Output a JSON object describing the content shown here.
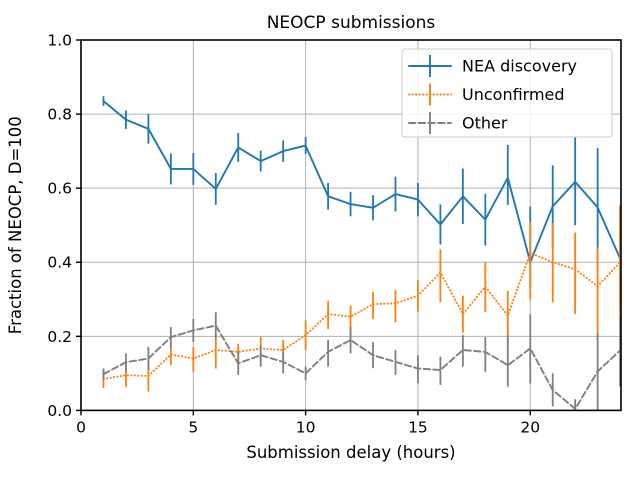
{
  "figure": {
    "title": "NEOCP submissions",
    "xlabel": "Submission delay (hours)",
    "ylabel": "Fraction of NEOCP, D=100"
  },
  "chart_data": {
    "type": "line",
    "title": "NEOCP submissions",
    "xlabel": "Submission delay (hours)",
    "ylabel": "Fraction of NEOCP, D=100",
    "xlim": [
      0,
      24.04
    ],
    "ylim": [
      0.0,
      1.0
    ],
    "xticks": [
      0,
      5,
      10,
      15,
      20
    ],
    "xtick_labels": [
      "0",
      "5",
      "10",
      "15",
      "20"
    ],
    "yticks": [
      0.0,
      0.2,
      0.4,
      0.6,
      0.8,
      1.0
    ],
    "ytick_labels": [
      "0.0",
      "0.2",
      "0.4",
      "0.6",
      "0.8",
      "1.0"
    ],
    "grid": true,
    "legend_position": "upper right",
    "x": [
      1,
      2,
      3,
      4,
      5,
      6,
      7,
      8,
      9,
      10,
      11,
      12,
      13,
      14,
      15,
      16,
      17,
      18,
      19,
      20,
      21,
      22,
      23,
      24
    ],
    "series": [
      {
        "name": "NEA discovery",
        "color": "#1f77b4",
        "linestyle": "solid",
        "values": [
          0.835,
          0.785,
          0.76,
          0.652,
          0.652,
          0.598,
          0.71,
          0.673,
          0.7,
          0.715,
          0.578,
          0.557,
          0.547,
          0.584,
          0.569,
          0.502,
          0.578,
          0.515,
          0.628,
          0.4,
          0.551,
          0.617,
          0.548,
          0.41
        ],
        "err_low": [
          0.822,
          0.76,
          0.72,
          0.61,
          0.609,
          0.555,
          0.671,
          0.645,
          0.671,
          0.692,
          0.542,
          0.524,
          0.513,
          0.537,
          0.524,
          0.448,
          0.503,
          0.445,
          0.555,
          0.328,
          0.44,
          0.5,
          0.38,
          0.27
        ],
        "err_high": [
          0.848,
          0.81,
          0.8,
          0.694,
          0.695,
          0.641,
          0.749,
          0.701,
          0.729,
          0.738,
          0.614,
          0.59,
          0.581,
          0.631,
          0.614,
          0.556,
          0.653,
          0.585,
          0.717,
          0.55,
          0.662,
          0.738,
          0.708,
          0.55
        ]
      },
      {
        "name": "Unconfirmed",
        "color": "#ff7f0e",
        "linestyle": "dotted",
        "values": [
          0.085,
          0.095,
          0.093,
          0.151,
          0.14,
          0.163,
          0.158,
          0.167,
          0.163,
          0.203,
          0.26,
          0.253,
          0.287,
          0.289,
          0.31,
          0.372,
          0.26,
          0.334,
          0.256,
          0.425,
          0.4,
          0.381,
          0.335,
          0.4
        ],
        "err_low": [
          0.06,
          0.064,
          0.051,
          0.122,
          0.104,
          0.113,
          0.127,
          0.136,
          0.131,
          0.163,
          0.22,
          0.185,
          0.247,
          0.238,
          0.265,
          0.292,
          0.21,
          0.265,
          0.18,
          0.3,
          0.292,
          0.26,
          0.19,
          0.25
        ],
        "err_high": [
          0.109,
          0.122,
          0.136,
          0.176,
          0.171,
          0.207,
          0.18,
          0.198,
          0.19,
          0.243,
          0.296,
          0.283,
          0.32,
          0.325,
          0.352,
          0.435,
          0.31,
          0.4,
          0.323,
          0.51,
          0.506,
          0.48,
          0.44,
          0.555
        ]
      },
      {
        "name": "Other",
        "color": "#7f7f7f",
        "linestyle": "dashed",
        "values": [
          0.098,
          0.13,
          0.14,
          0.198,
          0.216,
          0.229,
          0.127,
          0.149,
          0.131,
          0.1,
          0.158,
          0.19,
          0.149,
          0.131,
          0.113,
          0.109,
          0.163,
          0.158,
          0.122,
          0.167,
          0.055,
          0.004,
          0.105,
          0.162
        ],
        "err_low": [
          0.082,
          0.104,
          0.109,
          0.167,
          0.185,
          0.194,
          0.096,
          0.118,
          0.1,
          0.082,
          0.118,
          0.154,
          0.114,
          0.096,
          0.073,
          0.069,
          0.118,
          0.104,
          0.064,
          0.073,
          0.011,
          0.0,
          0.001,
          0.064
        ],
        "err_high": [
          0.113,
          0.154,
          0.171,
          0.225,
          0.247,
          0.265,
          0.158,
          0.176,
          0.158,
          0.118,
          0.19,
          0.225,
          0.185,
          0.163,
          0.149,
          0.145,
          0.203,
          0.198,
          0.203,
          0.26,
          0.1,
          0.03,
          0.207,
          0.252
        ]
      }
    ]
  },
  "colors": {
    "background": "#ffffff",
    "spine": "#000000",
    "grid": "#b0b0b0",
    "text": "#000000",
    "legend_border": "#cccccc",
    "series_blue": "#1f77b4",
    "series_orange": "#ff7f0e",
    "series_gray": "#7f7f7f"
  }
}
